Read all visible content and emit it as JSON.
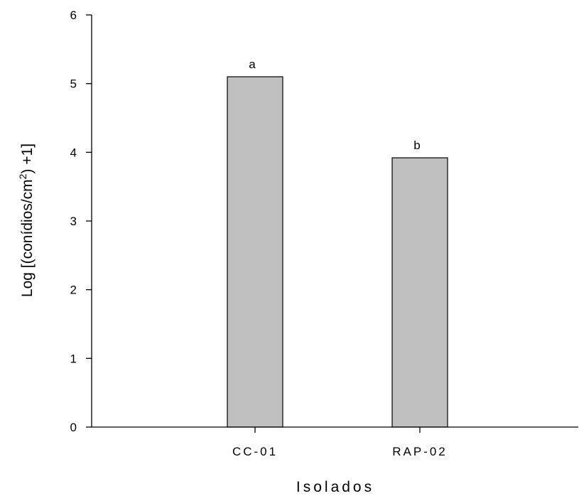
{
  "chart_data": {
    "type": "bar",
    "categories": [
      "CC-01",
      "RAP-02"
    ],
    "values": [
      5.1,
      3.92
    ],
    "data_labels": [
      "a",
      "b"
    ],
    "xlabel": "Isolados",
    "ylabel_main": "Log [(conídios/cm",
    "ylabel_sup": "2",
    "ylabel_tail": ") +1]",
    "ylim": [
      0,
      6
    ],
    "yticks": [
      0,
      1,
      2,
      3,
      4,
      5,
      6
    ],
    "grid": false,
    "bar_color": "#c0c0c0",
    "bar_edge_color": "#000000"
  }
}
